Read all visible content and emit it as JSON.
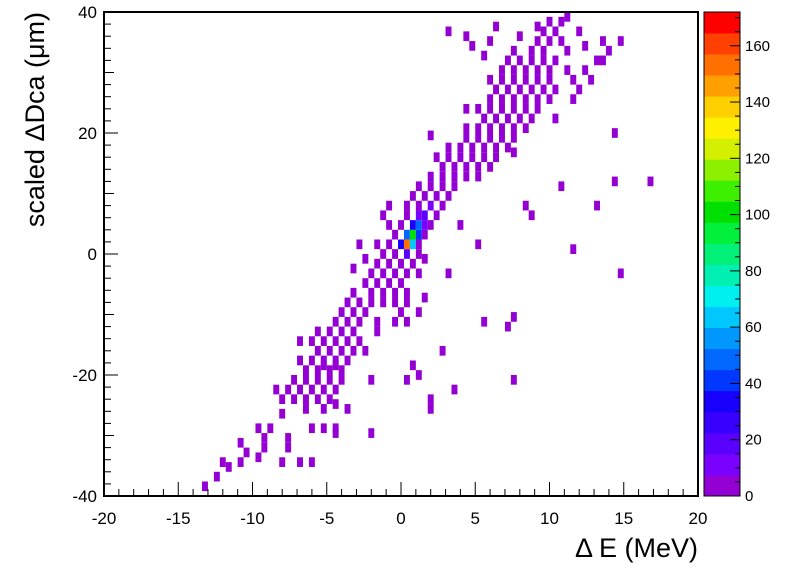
{
  "chart_data": {
    "type": "heatmap",
    "xlabel": "Δ E (MeV)",
    "ylabel": "scaled ΔDca (μm)",
    "xlim": [
      -20,
      20
    ],
    "ylim": [
      -40,
      40
    ],
    "xticks": [
      "-20",
      "-15",
      "-10",
      "-5",
      "0",
      "5",
      "10",
      "15",
      "20"
    ],
    "yticks": [
      "-40",
      "-20",
      "0",
      "20",
      "40"
    ],
    "bin_width": [
      0.4,
      1.6
    ],
    "zlim": [
      0,
      172
    ],
    "colorbar_ticks": [
      "0",
      "20",
      "40",
      "60",
      "80",
      "100",
      "120",
      "140",
      "160"
    ],
    "palette": [
      "#9400d3",
      "#7a00ff",
      "#5a00ff",
      "#3800ff",
      "#1800ff",
      "#0038ff",
      "#0068ff",
      "#0098ff",
      "#00c8ff",
      "#00f0f0",
      "#00f0b4",
      "#00f078",
      "#00f03c",
      "#00e000",
      "#3cf000",
      "#8cf000",
      "#d4f000",
      "#fff000",
      "#ffd000",
      "#ffa000",
      "#ff7000",
      "#ff4000",
      "#ff0000"
    ],
    "bins": [
      [
        -13.2,
        -38.4,
        1
      ],
      [
        -12.4,
        -36.8,
        1
      ],
      [
        -11.6,
        -35.2,
        1
      ],
      [
        -12.0,
        -34.4,
        1
      ],
      [
        -10.8,
        -34.4,
        1
      ],
      [
        -9.6,
        -33.6,
        1
      ],
      [
        -8.0,
        -34.4,
        1
      ],
      [
        -6.8,
        -34.4,
        1
      ],
      [
        -6.0,
        -34.4,
        1
      ],
      [
        -10.4,
        -32.8,
        1
      ],
      [
        -9.2,
        -32.0,
        1
      ],
      [
        -7.6,
        -32.0,
        1
      ],
      [
        -10.8,
        -31.2,
        1
      ],
      [
        -9.2,
        -30.4,
        1
      ],
      [
        -7.6,
        -30.4,
        1
      ],
      [
        -4.4,
        -29.6,
        1
      ],
      [
        -9.6,
        -28.8,
        1
      ],
      [
        -8.8,
        -28.8,
        1
      ],
      [
        -6.0,
        -28.8,
        1
      ],
      [
        -5.2,
        -28.8,
        1
      ],
      [
        -4.4,
        -28.8,
        1
      ],
      [
        -2.0,
        -29.6,
        1
      ],
      [
        -8.0,
        -26.4,
        1
      ],
      [
        -6.4,
        -25.6,
        1
      ],
      [
        -5.2,
        -25.6,
        1
      ],
      [
        -3.6,
        -25.6,
        1
      ],
      [
        2.0,
        -24.0,
        1
      ],
      [
        2.0,
        -25.6,
        1
      ],
      [
        -8.0,
        -24.0,
        1
      ],
      [
        -7.2,
        -24.0,
        1
      ],
      [
        -6.4,
        -24.0,
        1
      ],
      [
        -5.6,
        -24.0,
        1
      ],
      [
        -4.8,
        -24.0,
        1
      ],
      [
        -4.4,
        -24.8,
        1
      ],
      [
        -8.4,
        -22.4,
        1
      ],
      [
        -7.6,
        -22.4,
        1
      ],
      [
        -6.8,
        -22.4,
        1
      ],
      [
        -6.0,
        -22.4,
        1
      ],
      [
        -5.2,
        -22.4,
        1
      ],
      [
        -4.4,
        -22.4,
        1
      ],
      [
        3.6,
        -22.4,
        1
      ],
      [
        -7.2,
        -20.8,
        1
      ],
      [
        -6.4,
        -20.8,
        1
      ],
      [
        -5.6,
        -20.8,
        1
      ],
      [
        -4.8,
        -20.8,
        1
      ],
      [
        -4.0,
        -20.8,
        1
      ],
      [
        -2.0,
        -20.8,
        1
      ],
      [
        0.4,
        -20.8,
        1
      ],
      [
        7.6,
        -20.8,
        1
      ],
      [
        -6.4,
        -19.2,
        1
      ],
      [
        -5.6,
        -19.2,
        1
      ],
      [
        -4.8,
        -19.2,
        1
      ],
      [
        -4.0,
        -19.2,
        1
      ],
      [
        -5.2,
        -18.4,
        1
      ],
      [
        -4.4,
        -18.4,
        1
      ],
      [
        0.8,
        -18.4,
        1
      ],
      [
        1.2,
        -20.0,
        1
      ],
      [
        -6.8,
        -17.6,
        1
      ],
      [
        -6.0,
        -17.6,
        1
      ],
      [
        -5.2,
        -17.6,
        1
      ],
      [
        -4.4,
        -17.6,
        1
      ],
      [
        -3.6,
        -17.6,
        1
      ],
      [
        -5.6,
        -16.0,
        1
      ],
      [
        -4.8,
        -16.0,
        1
      ],
      [
        -4.0,
        -16.0,
        1
      ],
      [
        -3.2,
        -16.0,
        1
      ],
      [
        -2.4,
        -16.0,
        1
      ],
      [
        2.8,
        -16.0,
        1
      ],
      [
        -6.8,
        -14.4,
        1
      ],
      [
        -6.0,
        -14.4,
        1
      ],
      [
        -5.2,
        -14.4,
        1
      ],
      [
        -4.4,
        -14.4,
        1
      ],
      [
        -3.6,
        -14.4,
        1
      ],
      [
        -2.8,
        -14.4,
        1
      ],
      [
        -5.6,
        -12.8,
        1
      ],
      [
        -4.8,
        -12.8,
        1
      ],
      [
        -4.0,
        -12.8,
        1
      ],
      [
        -3.2,
        -12.8,
        1
      ],
      [
        -1.6,
        -12.8,
        1
      ],
      [
        7.2,
        -12.0,
        1
      ],
      [
        -4.4,
        -11.2,
        1
      ],
      [
        -3.6,
        -11.2,
        1
      ],
      [
        -2.8,
        -11.2,
        1
      ],
      [
        -1.6,
        -11.2,
        1
      ],
      [
        -0.4,
        -11.2,
        1
      ],
      [
        0.4,
        -11.2,
        1
      ],
      [
        -4.0,
        -9.6,
        1
      ],
      [
        -3.2,
        -9.6,
        1
      ],
      [
        -2.4,
        -9.6,
        1
      ],
      [
        0.0,
        -9.6,
        1
      ],
      [
        1.2,
        -9.6,
        1
      ],
      [
        7.6,
        -10.4,
        1
      ],
      [
        5.6,
        -11.2,
        1
      ],
      [
        -3.6,
        -8.0,
        1
      ],
      [
        -2.8,
        -8.0,
        1
      ],
      [
        -2.0,
        -8.0,
        1
      ],
      [
        -1.2,
        -8.0,
        1
      ],
      [
        -0.4,
        -8.0,
        1
      ],
      [
        0.4,
        -8.0,
        1
      ],
      [
        -3.2,
        -6.4,
        1
      ],
      [
        -2.0,
        -6.4,
        1
      ],
      [
        -1.2,
        -6.4,
        1
      ],
      [
        -0.4,
        -6.4,
        1
      ],
      [
        0.4,
        -6.4,
        1
      ],
      [
        1.6,
        -7.2,
        1
      ],
      [
        -2.4,
        -4.8,
        1
      ],
      [
        -1.6,
        -4.8,
        1
      ],
      [
        -0.8,
        -4.8,
        2
      ],
      [
        0.0,
        -4.8,
        1
      ],
      [
        -2.0,
        -3.2,
        1
      ],
      [
        -1.2,
        -3.2,
        1
      ],
      [
        -0.4,
        -3.2,
        2
      ],
      [
        0.4,
        -3.2,
        1
      ],
      [
        1.2,
        -3.2,
        1
      ],
      [
        3.2,
        -3.2,
        1
      ],
      [
        -3.2,
        -2.4,
        1
      ],
      [
        -1.6,
        -1.6,
        1
      ],
      [
        -0.8,
        -1.6,
        2
      ],
      [
        0.0,
        -1.6,
        3
      ],
      [
        0.8,
        -1.6,
        2
      ],
      [
        -2.4,
        -0.8,
        1
      ],
      [
        1.6,
        -0.8,
        1
      ],
      [
        -1.2,
        0.0,
        2
      ],
      [
        -0.4,
        0.0,
        6
      ],
      [
        0.4,
        0.0,
        18
      ],
      [
        1.2,
        0.0,
        4
      ],
      [
        -0.8,
        1.6,
        3
      ],
      [
        0.0,
        1.6,
        30
      ],
      [
        0.4,
        1.6,
        150
      ],
      [
        0.8,
        1.6,
        60
      ],
      [
        1.2,
        1.6,
        4
      ],
      [
        -1.6,
        1.6,
        1
      ],
      [
        -0.4,
        3.2,
        4
      ],
      [
        0.4,
        3.2,
        50
      ],
      [
        0.8,
        3.2,
        100
      ],
      [
        1.2,
        3.2,
        40
      ],
      [
        1.6,
        3.2,
        2
      ],
      [
        -2.8,
        1.6,
        1
      ],
      [
        11.6,
        0.8,
        1
      ],
      [
        14.8,
        -3.2,
        1
      ],
      [
        0.0,
        4.8,
        4
      ],
      [
        0.8,
        4.8,
        35
      ],
      [
        1.2,
        4.8,
        50
      ],
      [
        1.6,
        4.8,
        10
      ],
      [
        2.0,
        4.8,
        2
      ],
      [
        -0.8,
        4.8,
        1
      ],
      [
        0.4,
        6.4,
        4
      ],
      [
        1.2,
        6.4,
        14
      ],
      [
        1.6,
        6.4,
        20
      ],
      [
        2.4,
        6.4,
        3
      ],
      [
        -1.2,
        6.4,
        1
      ],
      [
        4.0,
        4.8,
        1
      ],
      [
        5.2,
        1.6,
        1
      ],
      [
        0.4,
        8.0,
        2
      ],
      [
        1.2,
        8.0,
        4
      ],
      [
        2.0,
        8.0,
        8
      ],
      [
        2.8,
        8.0,
        2
      ],
      [
        -0.8,
        8.0,
        1
      ],
      [
        1.6,
        9.6,
        2
      ],
      [
        2.4,
        9.6,
        3
      ],
      [
        3.2,
        9.6,
        1
      ],
      [
        0.8,
        9.6,
        1
      ],
      [
        8.4,
        8.0,
        1
      ],
      [
        13.2,
        8.0,
        1
      ],
      [
        8.8,
        6.4,
        1
      ],
      [
        2.0,
        11.2,
        2
      ],
      [
        2.8,
        11.2,
        3
      ],
      [
        3.6,
        11.2,
        1
      ],
      [
        1.2,
        11.2,
        1
      ],
      [
        2.8,
        12.8,
        2
      ],
      [
        3.6,
        12.8,
        4
      ],
      [
        4.4,
        12.8,
        2
      ],
      [
        5.2,
        12.8,
        1
      ],
      [
        2.0,
        12.8,
        1
      ],
      [
        10.8,
        11.2,
        1
      ],
      [
        14.4,
        12.0,
        1
      ],
      [
        16.8,
        12.0,
        1
      ],
      [
        2.8,
        14.4,
        1
      ],
      [
        3.6,
        14.4,
        3
      ],
      [
        4.4,
        14.4,
        4
      ],
      [
        5.2,
        14.4,
        2
      ],
      [
        6.0,
        14.4,
        1
      ],
      [
        3.2,
        16.0,
        2
      ],
      [
        4.0,
        16.0,
        3
      ],
      [
        4.8,
        16.0,
        4
      ],
      [
        5.6,
        16.0,
        2
      ],
      [
        6.4,
        16.0,
        1
      ],
      [
        2.4,
        16.0,
        1
      ],
      [
        7.6,
        16.8,
        1
      ],
      [
        4.0,
        17.6,
        2
      ],
      [
        4.8,
        17.6,
        3
      ],
      [
        5.6,
        17.6,
        3
      ],
      [
        6.4,
        17.6,
        2
      ],
      [
        7.2,
        17.6,
        1
      ],
      [
        3.2,
        17.6,
        1
      ],
      [
        4.4,
        19.2,
        1
      ],
      [
        5.2,
        19.2,
        3
      ],
      [
        6.0,
        19.2,
        3
      ],
      [
        6.8,
        19.2,
        2
      ],
      [
        7.6,
        19.2,
        1
      ],
      [
        2.0,
        19.6,
        1
      ],
      [
        14.4,
        20.0,
        1
      ],
      [
        5.2,
        20.8,
        2
      ],
      [
        6.0,
        20.8,
        3
      ],
      [
        6.8,
        20.8,
        3
      ],
      [
        7.6,
        20.8,
        2
      ],
      [
        8.4,
        20.8,
        1
      ],
      [
        4.4,
        20.8,
        1
      ],
      [
        5.6,
        22.4,
        2
      ],
      [
        6.4,
        22.4,
        3
      ],
      [
        7.2,
        22.4,
        3
      ],
      [
        8.0,
        22.4,
        2
      ],
      [
        8.8,
        22.4,
        1
      ],
      [
        10.4,
        22.4,
        1
      ],
      [
        5.2,
        24.0,
        2
      ],
      [
        6.0,
        24.0,
        3
      ],
      [
        6.8,
        24.0,
        4
      ],
      [
        7.6,
        24.0,
        3
      ],
      [
        8.4,
        24.0,
        2
      ],
      [
        9.2,
        24.0,
        1
      ],
      [
        4.4,
        24.0,
        1
      ],
      [
        6.0,
        25.6,
        1
      ],
      [
        6.8,
        25.6,
        3
      ],
      [
        7.6,
        25.6,
        4
      ],
      [
        8.4,
        25.6,
        3
      ],
      [
        9.2,
        25.6,
        2
      ],
      [
        10.0,
        25.6,
        1
      ],
      [
        11.6,
        25.6,
        1
      ],
      [
        6.4,
        27.2,
        2
      ],
      [
        7.2,
        27.2,
        3
      ],
      [
        8.0,
        27.2,
        3
      ],
      [
        8.8,
        27.2,
        3
      ],
      [
        9.6,
        27.2,
        2
      ],
      [
        10.4,
        27.2,
        1
      ],
      [
        12.0,
        27.2,
        1
      ],
      [
        6.0,
        28.8,
        1
      ],
      [
        6.8,
        28.8,
        2
      ],
      [
        7.6,
        28.8,
        3
      ],
      [
        8.4,
        28.8,
        4
      ],
      [
        9.2,
        28.8,
        3
      ],
      [
        10.0,
        28.8,
        2
      ],
      [
        11.6,
        28.8,
        1
      ],
      [
        12.8,
        28.8,
        1
      ],
      [
        6.8,
        30.4,
        2
      ],
      [
        7.6,
        30.4,
        3
      ],
      [
        8.4,
        30.4,
        3
      ],
      [
        9.2,
        30.4,
        2
      ],
      [
        10.0,
        30.4,
        1
      ],
      [
        11.2,
        30.4,
        1
      ],
      [
        12.4,
        30.4,
        1
      ],
      [
        7.2,
        32.0,
        2
      ],
      [
        8.0,
        32.0,
        2
      ],
      [
        8.8,
        32.0,
        3
      ],
      [
        9.6,
        32.0,
        2
      ],
      [
        10.4,
        32.0,
        1
      ],
      [
        13.6,
        32.0,
        1
      ],
      [
        7.6,
        33.6,
        1
      ],
      [
        8.8,
        33.6,
        2
      ],
      [
        9.6,
        33.6,
        1
      ],
      [
        11.2,
        33.6,
        1
      ],
      [
        4.8,
        34.4,
        1
      ],
      [
        9.2,
        35.2,
        2
      ],
      [
        10.0,
        35.2,
        2
      ],
      [
        10.8,
        35.2,
        1
      ],
      [
        6.0,
        35.2,
        1
      ],
      [
        8.0,
        36.0,
        1
      ],
      [
        9.6,
        36.8,
        1
      ],
      [
        10.4,
        36.8,
        1
      ],
      [
        12.0,
        36.8,
        1
      ],
      [
        14.8,
        35.2,
        1
      ],
      [
        4.4,
        36.0,
        1
      ],
      [
        3.2,
        36.8,
        1
      ],
      [
        6.4,
        37.6,
        1
      ],
      [
        10.0,
        38.4,
        1
      ],
      [
        10.8,
        38.4,
        1
      ],
      [
        11.2,
        39.2,
        1
      ],
      [
        9.2,
        37.6,
        1
      ],
      [
        13.6,
        35.2,
        1
      ],
      [
        12.4,
        34.4,
        1
      ],
      [
        5.6,
        32.8,
        1
      ],
      [
        13.2,
        32.0,
        1
      ],
      [
        14.0,
        33.6,
        1
      ]
    ]
  }
}
